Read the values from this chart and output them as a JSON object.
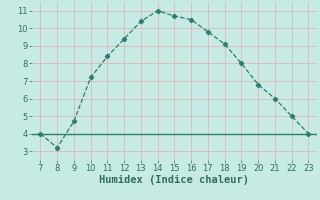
{
  "x": [
    7,
    8,
    9,
    10,
    11,
    12,
    13,
    14,
    15,
    16,
    17,
    18,
    19,
    20,
    21,
    22,
    23
  ],
  "y": [
    4.0,
    3.2,
    4.7,
    7.2,
    8.4,
    9.4,
    10.4,
    11.0,
    10.7,
    10.5,
    9.8,
    9.1,
    8.0,
    6.8,
    6.0,
    5.0,
    4.0
  ],
  "hline_y": 4.0,
  "line_color": "#2e7d6e",
  "hline_color": "#2e7d6e",
  "bg_color": "#c8eae4",
  "grid_color": "#dbb8b8",
  "xlabel": "Humidex (Indice chaleur)",
  "xlabel_fontsize": 7.5,
  "xlabel_fontweight": "bold",
  "xlim": [
    6.5,
    23.5
  ],
  "ylim": [
    2.5,
    11.5
  ],
  "xticks": [
    7,
    8,
    9,
    10,
    11,
    12,
    13,
    14,
    15,
    16,
    17,
    18,
    19,
    20,
    21,
    22,
    23
  ],
  "yticks": [
    3,
    4,
    5,
    6,
    7,
    8,
    9,
    10,
    11
  ],
  "tick_fontsize": 6,
  "marker": "D",
  "markersize": 2.2,
  "linewidth": 0.9,
  "linestyle": "--",
  "hline_linewidth": 1.0,
  "tick_color": "#2e6e60"
}
